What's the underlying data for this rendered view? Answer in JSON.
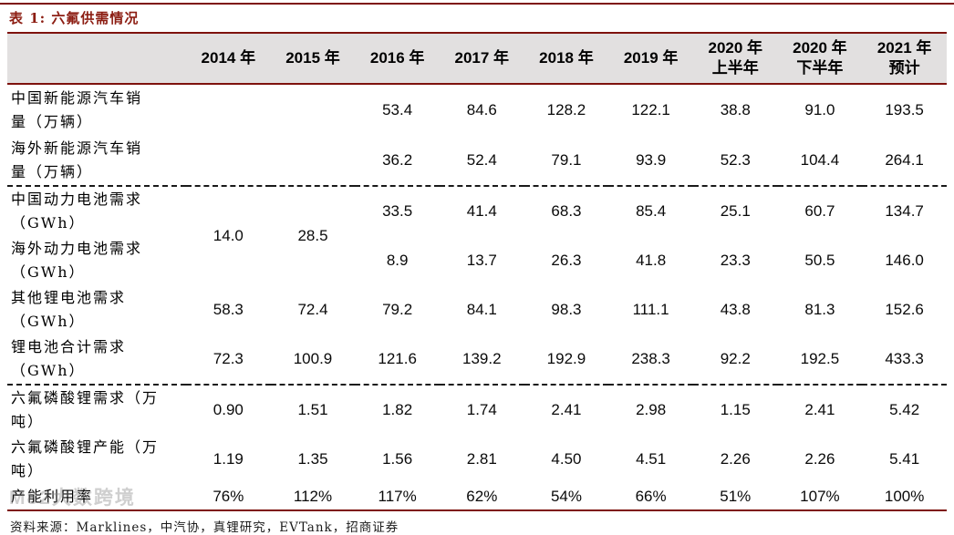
{
  "page": {
    "title": "表 1:  六氟供需情况",
    "source": "资料来源：Marklines，中汽协，真锂研究，EVTank，招商证券",
    "watermark": "M82大数跨境"
  },
  "colors": {
    "accent_red": "#8c1d12",
    "rule_red": "#7e120d",
    "header_bg": "#e2e0e0",
    "separator_dash": "#1a1a1a"
  },
  "table": {
    "columns": [
      "",
      "2014 年",
      "2015 年",
      "2016 年",
      "2017 年",
      "2018 年",
      "2019 年",
      "2020 年\n上半年",
      "2020 年\n下半年",
      "2021 年\n预计"
    ],
    "rows": [
      {
        "label": "中国新能源汽车销\n量（万辆）",
        "height": "tall",
        "values": [
          "",
          "",
          "53.4",
          "84.6",
          "128.2",
          "122.1",
          "38.8",
          "91.0",
          "193.5"
        ]
      },
      {
        "label": "海外新能源汽车销\n量（万辆）",
        "height": "tall",
        "separator_after": true,
        "values": [
          "",
          "",
          "36.2",
          "52.4",
          "79.1",
          "93.9",
          "52.3",
          "104.4",
          "264.1"
        ]
      },
      {
        "label": "中国动力电池需求\n（GWh）",
        "height": "mid",
        "values": [
          {
            "v": "14.0",
            "rowspan": 2
          },
          {
            "v": "28.5",
            "rowspan": 2
          },
          "33.5",
          "41.4",
          "68.3",
          "85.4",
          "25.1",
          "60.7",
          "134.7"
        ]
      },
      {
        "label": "海外动力电池需求\n（GWh）",
        "height": "mid",
        "values": [
          null,
          null,
          "8.9",
          "13.7",
          "26.3",
          "41.8",
          "23.3",
          "50.5",
          "146.0"
        ]
      },
      {
        "label": "其他锂电池需求\n（GWh）",
        "height": "mid",
        "values": [
          "58.3",
          "72.4",
          "79.2",
          "84.1",
          "98.3",
          "111.1",
          "43.8",
          "81.3",
          "152.6"
        ]
      },
      {
        "label": "锂电池合计需求\n（GWh）",
        "height": "mid",
        "separator_after": true,
        "values": [
          "72.3",
          "100.9",
          "121.6",
          "139.2",
          "192.9",
          "238.3",
          "92.2",
          "192.5",
          "433.3"
        ]
      },
      {
        "label": "六氟磷酸锂需求（万\n吨）",
        "height": "mid",
        "values": [
          "0.90",
          "1.51",
          "1.82",
          "1.74",
          "2.41",
          "2.98",
          "1.15",
          "2.41",
          "5.42"
        ]
      },
      {
        "label": "六氟磷酸锂产能（万\n吨）",
        "height": "mid",
        "values": [
          "1.19",
          "1.35",
          "1.56",
          "2.81",
          "4.50",
          "4.51",
          "2.26",
          "2.26",
          "5.41"
        ]
      },
      {
        "label": "产能利用率",
        "height": "short",
        "values": [
          "76%",
          "112%",
          "117%",
          "62%",
          "54%",
          "66%",
          "51%",
          "107%",
          "100%"
        ]
      }
    ],
    "label_col_width": 196
  }
}
